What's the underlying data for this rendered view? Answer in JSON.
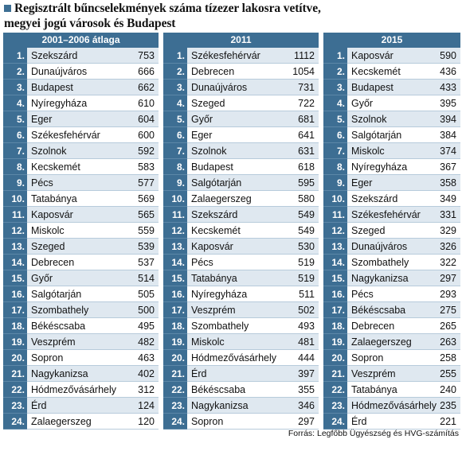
{
  "title": {
    "line1": "Regisztrált bűncselekmények száma tízezer lakosra vetítve,",
    "line2": "megyei jogú városok és Budapest"
  },
  "columns": [
    {
      "header": "2001–2006 átlaga",
      "rows": [
        {
          "rank": "1.",
          "city": "Szekszárd",
          "value": "753"
        },
        {
          "rank": "2.",
          "city": "Dunaújváros",
          "value": "666"
        },
        {
          "rank": "3.",
          "city": "Budapest",
          "value": "662"
        },
        {
          "rank": "4.",
          "city": "Nyíregyháza",
          "value": "610"
        },
        {
          "rank": "5.",
          "city": "Eger",
          "value": "604"
        },
        {
          "rank": "6.",
          "city": "Székesfehérvár",
          "value": "600"
        },
        {
          "rank": "7.",
          "city": "Szolnok",
          "value": "592"
        },
        {
          "rank": "8.",
          "city": "Kecskemét",
          "value": "583"
        },
        {
          "rank": "9.",
          "city": "Pécs",
          "value": "577"
        },
        {
          "rank": "10.",
          "city": "Tatabánya",
          "value": "569"
        },
        {
          "rank": "11.",
          "city": "Kaposvár",
          "value": "565"
        },
        {
          "rank": "12.",
          "city": "Miskolc",
          "value": "559"
        },
        {
          "rank": "13.",
          "city": "Szeged",
          "value": "539"
        },
        {
          "rank": "14.",
          "city": "Debrecen",
          "value": "537"
        },
        {
          "rank": "15.",
          "city": "Győr",
          "value": "514"
        },
        {
          "rank": "16.",
          "city": "Salgótarján",
          "value": "505"
        },
        {
          "rank": "17.",
          "city": "Szombathely",
          "value": "500"
        },
        {
          "rank": "18.",
          "city": "Békéscsaba",
          "value": "495"
        },
        {
          "rank": "19.",
          "city": "Veszprém",
          "value": "482"
        },
        {
          "rank": "20.",
          "city": "Sopron",
          "value": "463"
        },
        {
          "rank": "21.",
          "city": "Nagykanizsa",
          "value": "402"
        },
        {
          "rank": "22.",
          "city": "Hódmezővásárhely",
          "value": "312"
        },
        {
          "rank": "23.",
          "city": "Érd",
          "value": "124"
        },
        {
          "rank": "24.",
          "city": "Zalaegerszeg",
          "value": "120"
        }
      ]
    },
    {
      "header": "2011",
      "rows": [
        {
          "rank": "1.",
          "city": "Székesfehérvár",
          "value": "1112"
        },
        {
          "rank": "2.",
          "city": "Debrecen",
          "value": "1054"
        },
        {
          "rank": "3.",
          "city": "Dunaújváros",
          "value": "731"
        },
        {
          "rank": "4.",
          "city": "Szeged",
          "value": "722"
        },
        {
          "rank": "5.",
          "city": "Győr",
          "value": "681"
        },
        {
          "rank": "6.",
          "city": "Eger",
          "value": "641"
        },
        {
          "rank": "7.",
          "city": "Szolnok",
          "value": "631"
        },
        {
          "rank": "8.",
          "city": "Budapest",
          "value": "618"
        },
        {
          "rank": "9.",
          "city": "Salgótarján",
          "value": "595"
        },
        {
          "rank": "10.",
          "city": "Zalaegerszeg",
          "value": "580"
        },
        {
          "rank": "11.",
          "city": "Szekszárd",
          "value": "549"
        },
        {
          "rank": "12.",
          "city": "Kecskemét",
          "value": "549"
        },
        {
          "rank": "13.",
          "city": "Kaposvár",
          "value": "530"
        },
        {
          "rank": "14.",
          "city": "Pécs",
          "value": "519"
        },
        {
          "rank": "15.",
          "city": "Tatabánya",
          "value": "519"
        },
        {
          "rank": "16.",
          "city": "Nyíregyháza",
          "value": "511"
        },
        {
          "rank": "17.",
          "city": "Veszprém",
          "value": "502"
        },
        {
          "rank": "18.",
          "city": "Szombathely",
          "value": "493"
        },
        {
          "rank": "19.",
          "city": "Miskolc",
          "value": "481"
        },
        {
          "rank": "20.",
          "city": "Hódmezővásárhely",
          "value": "444"
        },
        {
          "rank": "21.",
          "city": "Érd",
          "value": "397"
        },
        {
          "rank": "22.",
          "city": "Békéscsaba",
          "value": "355"
        },
        {
          "rank": "23.",
          "city": "Nagykanizsa",
          "value": "346"
        },
        {
          "rank": "24.",
          "city": "Sopron",
          "value": "297"
        }
      ]
    },
    {
      "header": "2015",
      "rows": [
        {
          "rank": "1.",
          "city": "Kaposvár",
          "value": "590"
        },
        {
          "rank": "2.",
          "city": "Kecskemét",
          "value": "436"
        },
        {
          "rank": "3.",
          "city": "Budapest",
          "value": "433"
        },
        {
          "rank": "4.",
          "city": "Győr",
          "value": "395"
        },
        {
          "rank": "5.",
          "city": "Szolnok",
          "value": "394"
        },
        {
          "rank": "6.",
          "city": "Salgótarján",
          "value": "384"
        },
        {
          "rank": "7.",
          "city": "Miskolc",
          "value": "374"
        },
        {
          "rank": "8.",
          "city": "Nyíregyháza",
          "value": "367"
        },
        {
          "rank": "9.",
          "city": "Eger",
          "value": "358"
        },
        {
          "rank": "10.",
          "city": "Szekszárd",
          "value": "349"
        },
        {
          "rank": "11.",
          "city": "Székesfehérvár",
          "value": "331"
        },
        {
          "rank": "12.",
          "city": "Szeged",
          "value": "329"
        },
        {
          "rank": "13.",
          "city": "Dunaújváros",
          "value": "326"
        },
        {
          "rank": "14.",
          "city": "Szombathely",
          "value": "322"
        },
        {
          "rank": "15.",
          "city": "Nagykanizsa",
          "value": "297"
        },
        {
          "rank": "16.",
          "city": "Pécs",
          "value": "293"
        },
        {
          "rank": "17.",
          "city": "Békéscsaba",
          "value": "275"
        },
        {
          "rank": "18.",
          "city": "Debrecen",
          "value": "265"
        },
        {
          "rank": "19.",
          "city": "Zalaegerszeg",
          "value": "263"
        },
        {
          "rank": "20.",
          "city": "Sopron",
          "value": "258"
        },
        {
          "rank": "21.",
          "city": "Veszprém",
          "value": "255"
        },
        {
          "rank": "22.",
          "city": "Tatabánya",
          "value": "240"
        },
        {
          "rank": "23.",
          "city": "Hódmezővásárhely",
          "value": "235"
        },
        {
          "rank": "24.",
          "city": "Érd",
          "value": "221"
        }
      ]
    }
  ],
  "source": "Forrás: Legfőbb Ügyészség és HVG-számítás",
  "colors": {
    "accent": "#3d6e93",
    "stripe": "#dfe8f0"
  }
}
